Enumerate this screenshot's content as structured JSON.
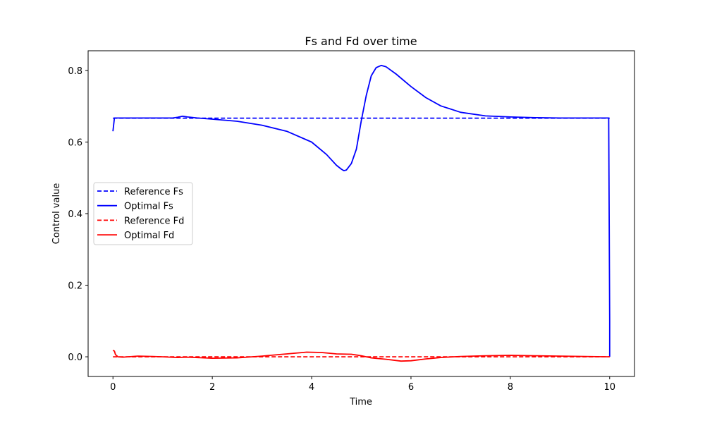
{
  "chart_data": {
    "type": "line",
    "title": "Fs and Fd over time",
    "xlabel": "Time",
    "ylabel": "Control value",
    "xlim": [
      -0.5,
      10.5
    ],
    "ylim": [
      -0.055,
      0.855
    ],
    "xticks": [
      0,
      2,
      4,
      6,
      8,
      10
    ],
    "yticks": [
      0.0,
      0.2,
      0.4,
      0.6,
      0.8
    ],
    "xtick_labels": [
      "0",
      "2",
      "4",
      "6",
      "8",
      "10"
    ],
    "ytick_labels": [
      "0.0",
      "0.2",
      "0.4",
      "0.6",
      "0.8"
    ],
    "grid": false,
    "legend_position": "center-left",
    "series": [
      {
        "name": "Reference Fs",
        "color": "#0000ff",
        "style": "dashed",
        "x": [
          0,
          10
        ],
        "y": [
          0.6667,
          0.6667
        ]
      },
      {
        "name": "Optimal Fs",
        "color": "#0000ff",
        "style": "solid",
        "x": [
          0,
          0.03,
          0.5,
          1.0,
          1.2,
          1.3,
          1.4,
          1.5,
          1.7,
          2.0,
          2.5,
          3.0,
          3.5,
          4.0,
          4.3,
          4.5,
          4.6,
          4.65,
          4.7,
          4.8,
          4.9,
          5.0,
          5.1,
          5.2,
          5.3,
          5.4,
          5.5,
          5.7,
          6.0,
          6.3,
          6.6,
          7.0,
          7.5,
          8.0,
          8.5,
          9.0,
          9.5,
          9.98,
          10.0,
          10.0
        ],
        "y": [
          0.63,
          0.667,
          0.667,
          0.667,
          0.667,
          0.669,
          0.672,
          0.67,
          0.667,
          0.664,
          0.658,
          0.647,
          0.63,
          0.6,
          0.565,
          0.535,
          0.524,
          0.52,
          0.522,
          0.54,
          0.58,
          0.66,
          0.73,
          0.785,
          0.808,
          0.814,
          0.81,
          0.79,
          0.755,
          0.724,
          0.701,
          0.683,
          0.673,
          0.67,
          0.668,
          0.667,
          0.667,
          0.667,
          0.1,
          0.0
        ]
      },
      {
        "name": "Reference Fd",
        "color": "#ff0000",
        "style": "dashed",
        "x": [
          0,
          10
        ],
        "y": [
          0.0,
          0.0
        ]
      },
      {
        "name": "Optimal Fd",
        "color": "#ff0000",
        "style": "solid",
        "x": [
          0,
          0.03,
          0.05,
          0.1,
          0.2,
          0.5,
          0.8,
          1.0,
          1.3,
          1.5,
          2.0,
          2.5,
          3.0,
          3.5,
          3.9,
          4.2,
          4.5,
          4.8,
          5.0,
          5.2,
          5.5,
          5.8,
          6.0,
          6.3,
          6.6,
          7.0,
          7.5,
          8.0,
          8.5,
          9.0,
          9.5,
          10.0
        ],
        "y": [
          0.018,
          0.016,
          0.006,
          0.0,
          -0.001,
          0.002,
          0.001,
          0.0,
          -0.002,
          -0.001,
          -0.004,
          -0.003,
          0.002,
          0.008,
          0.013,
          0.012,
          0.008,
          0.007,
          0.003,
          -0.003,
          -0.007,
          -0.012,
          -0.011,
          -0.006,
          -0.002,
          0.001,
          0.003,
          0.004,
          0.003,
          0.002,
          0.001,
          0.0
        ]
      }
    ]
  }
}
